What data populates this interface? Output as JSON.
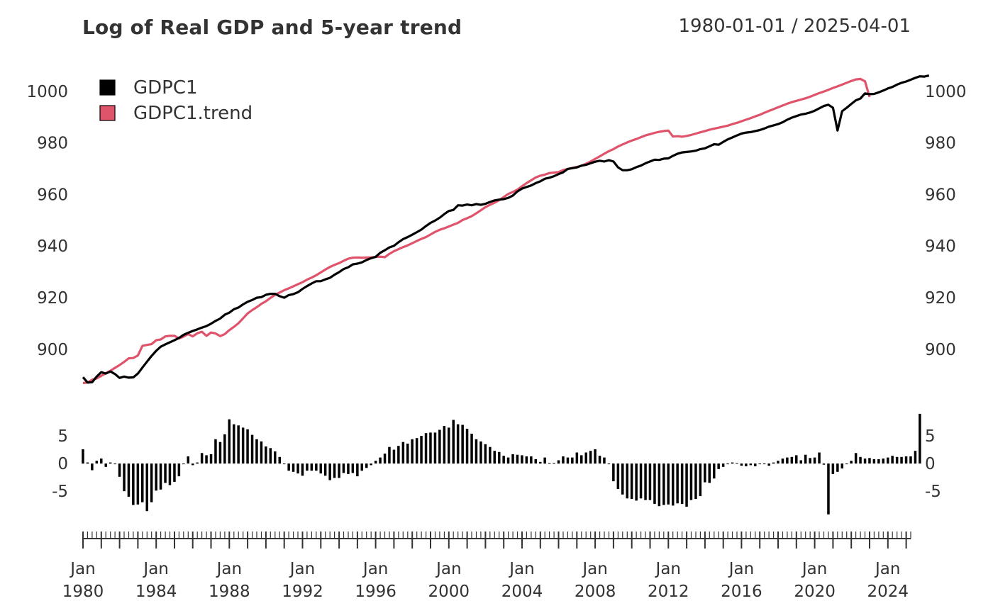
{
  "header": {
    "title": "Log of Real GDP and 5-year trend",
    "date_range": "1980-01-01 / 2025-04-01"
  },
  "colors": {
    "series_main": "#000000",
    "series_trend": "#DF536B",
    "bars": "#000000",
    "text": "#333333"
  },
  "chart_data": [
    {
      "type": "line",
      "title": "Log of Real GDP and 5-year trend",
      "x_type": "quarterly",
      "x_start": "1980-01-01",
      "x_end": "2025-04-01",
      "ylim": [
        884,
        1009
      ],
      "y_ticks": [
        900,
        920,
        940,
        960,
        980,
        1000
      ],
      "axis_sides": [
        "left",
        "right"
      ],
      "grid": false,
      "legend": {
        "position": "top-left",
        "entries": [
          "GDPC1",
          "GDPC1.trend"
        ]
      },
      "series": [
        {
          "name": "GDPC1",
          "color": "#000000",
          "values": [
            888.9,
            886.8,
            886.9,
            889.1,
            890.8,
            890.3,
            891.1,
            890.1,
            888.6,
            889.1,
            888.7,
            888.8,
            890.3,
            892.6,
            894.9,
            897.1,
            899.1,
            900.7,
            901.6,
            902.4,
            903.2,
            904.1,
            905.3,
            906.1,
            906.8,
            907.4,
            908.1,
            908.7,
            909.6,
            910.7,
            911.6,
            913.1,
            913.9,
            915.2,
            915.9,
            917.1,
            918.1,
            918.8,
            919.7,
            919.9,
            920.8,
            921.2,
            921.2,
            920.3,
            919.7,
            920.7,
            921.1,
            921.8,
            923.1,
            924.2,
            925.2,
            926.1,
            926.1,
            926.8,
            927.4,
            928.6,
            929.6,
            930.8,
            931.5,
            932.6,
            932.9,
            933.4,
            934.3,
            935.0,
            935.5,
            937.1,
            938.1,
            939.2,
            939.8,
            941.2,
            942.4,
            943.2,
            944.1,
            945.1,
            946.1,
            947.5,
            948.7,
            949.6,
            950.7,
            952.1,
            953.3,
            953.7,
            955.5,
            955.4,
            955.8,
            955.5,
            956.0,
            955.7,
            956.1,
            956.8,
            957.4,
            957.7,
            957.9,
            958.4,
            959.3,
            960.9,
            962.0,
            962.6,
            963.2,
            964.1,
            964.8,
            965.8,
            966.2,
            966.8,
            967.6,
            968.3,
            969.6,
            969.9,
            970.2,
            970.9,
            971.2,
            971.8,
            972.4,
            972.8,
            972.5,
            973.0,
            972.5,
            970.2,
            969.1,
            969.1,
            969.5,
            970.3,
            970.9,
            971.8,
            972.5,
            973.2,
            973.1,
            973.6,
            973.7,
            974.7,
            975.5,
            976.0,
            976.2,
            976.4,
            976.7,
            977.3,
            977.6,
            978.4,
            979.2,
            979.0,
            980.1,
            981.1,
            981.8,
            982.6,
            983.3,
            983.7,
            983.9,
            984.3,
            984.7,
            985.3,
            986.0,
            986.5,
            987.0,
            987.7,
            988.7,
            989.5,
            990.1,
            990.7,
            991.0,
            991.5,
            992.2,
            993.1,
            994.0,
            994.5,
            993.3,
            984.5,
            992.0,
            993.3,
            994.8,
            996.2,
            996.9,
            998.9,
            998.6,
            998.7,
            999.3,
            1000.0,
            1000.8,
            1001.4,
            1002.3,
            1003.0,
            1003.5,
            1004.2,
            1004.9,
            1005.5,
            1005.4,
            1005.8
          ]
        },
        {
          "name": "GDPC1.trend",
          "color": "#DF536B",
          "values": [
            886.6,
            886.8,
            887.9,
            888.4,
            889.4,
            890.4,
            891.4,
            892.5,
            893.6,
            894.8,
            896.2,
            896.3,
            897.3,
            901.0,
            901.4,
            901.7,
            903.2,
            903.5,
            904.7,
            904.9,
            904.9,
            903.9,
            904.6,
            905.6,
            904.7,
            905.9,
            906.5,
            904.9,
            906.2,
            905.8,
            904.8,
            905.6,
            907.1,
            908.4,
            909.8,
            911.7,
            913.6,
            914.9,
            916.0,
            917.3,
            918.3,
            919.6,
            920.8,
            921.7,
            922.6,
            923.3,
            924.1,
            924.9,
            925.7,
            926.7,
            927.5,
            928.4,
            929.5,
            930.6,
            931.6,
            932.4,
            933.1,
            934.0,
            934.8,
            935.2,
            935.3,
            935.2,
            935.3,
            935.3,
            935.5,
            935.6,
            935.4,
            936.7,
            937.7,
            938.5,
            939.3,
            940.0,
            940.8,
            941.7,
            942.5,
            943.2,
            944.2,
            945.2,
            946.0,
            946.6,
            947.3,
            948.0,
            948.7,
            949.8,
            950.5,
            951.3,
            952.4,
            953.6,
            954.8,
            955.7,
            956.5,
            957.5,
            958.7,
            959.9,
            960.7,
            961.6,
            962.9,
            964.1,
            965.2,
            966.3,
            967.0,
            967.4,
            968.0,
            968.2,
            968.4,
            969.2,
            969.6,
            970.0,
            970.4,
            970.8,
            971.6,
            972.5,
            973.5,
            974.5,
            975.5,
            976.5,
            977.3,
            978.3,
            979.1,
            979.9,
            980.6,
            981.2,
            981.9,
            982.6,
            983.1,
            983.6,
            984.0,
            984.3,
            984.5,
            982.2,
            982.3,
            982.1,
            982.4,
            982.8,
            983.3,
            983.8,
            984.3,
            984.8,
            985.2,
            985.6,
            986.0,
            986.4,
            987.0,
            987.5,
            988.1,
            988.7,
            989.3,
            990.0,
            990.6,
            991.4,
            992.1,
            992.8,
            993.5,
            994.2,
            994.9,
            995.5,
            996.0,
            996.5,
            997.0,
            997.6,
            998.3,
            999.0,
            999.6,
            1000.3,
            1001.0,
            1001.6,
            1002.3,
            1003.0,
            1003.7,
            1004.3,
            1004.5,
            1003.6,
            997.5
          ]
        }
      ]
    },
    {
      "type": "bar",
      "title": "",
      "x_type": "quarterly",
      "x_start": "1980-01-01",
      "x_end": "2025-04-01",
      "ylim": [
        -11,
        9.5
      ],
      "y_ticks": [
        -5,
        0,
        5
      ],
      "axis_sides": [
        "left",
        "right"
      ],
      "series": [
        {
          "name": "",
          "color": "#000000",
          "values": [
            2.6,
            0.2,
            -1.2,
            0.5,
            0.9,
            -0.6,
            0.2,
            0.0,
            -2.4,
            -5.0,
            -6.0,
            -7.5,
            -7.4,
            -7.0,
            -8.6,
            -7.0,
            -4.9,
            -4.7,
            -3.5,
            -3.9,
            -3.3,
            -2.3,
            0.0,
            1.3,
            -0.3,
            0.2,
            1.9,
            1.5,
            1.7,
            4.4,
            3.9,
            5.3,
            8.0,
            7.1,
            6.9,
            6.5,
            6.2,
            5.2,
            4.4,
            4.0,
            3.1,
            2.8,
            2.2,
            1.2,
            -0.1,
            -1.3,
            -1.5,
            -1.8,
            -2.2,
            -1.3,
            -1.3,
            -1.3,
            -1.8,
            -2.2,
            -3.0,
            -2.6,
            -2.6,
            -1.7,
            -1.9,
            -1.7,
            -2.3,
            -1.3,
            -0.8,
            -0.3,
            0.5,
            1.1,
            1.8,
            3.0,
            2.5,
            3.2,
            3.9,
            3.6,
            4.4,
            4.6,
            5.0,
            5.5,
            5.6,
            5.6,
            6.1,
            6.8,
            6.5,
            7.9,
            7.1,
            7.0,
            6.3,
            5.4,
            4.4,
            4.0,
            3.5,
            3.0,
            2.3,
            2.1,
            1.4,
            1.1,
            1.7,
            1.6,
            1.5,
            1.3,
            1.3,
            0.8,
            0.3,
            1.1,
            0.1,
            0.1,
            0.6,
            1.3,
            1.1,
            1.1,
            2.0,
            1.5,
            2.0,
            2.3,
            2.6,
            1.4,
            1.1,
            -0.1,
            -3.2,
            -4.6,
            -5.6,
            -6.3,
            -6.4,
            -6.7,
            -6.3,
            -6.6,
            -6.6,
            -7.3,
            -7.7,
            -7.5,
            -7.4,
            -7.6,
            -7.2,
            -7.3,
            -7.8,
            -6.6,
            -6.4,
            -5.9,
            -3.4,
            -3.5,
            -2.7,
            -1.0,
            -0.6,
            -0.1,
            0.2,
            0.1,
            -0.4,
            -0.5,
            -0.3,
            -0.5,
            0.0,
            0.0,
            -0.4,
            0.2,
            0.5,
            0.9,
            1.1,
            1.2,
            1.5,
            0.6,
            1.6,
            1.0,
            1.1,
            2.0,
            -0.2,
            -9.2,
            -1.9,
            -1.5,
            -0.9,
            -0.1,
            0.5,
            1.9,
            1.2,
            0.9,
            1.0,
            0.8,
            0.8,
            0.9,
            1.1,
            1.4,
            1.2,
            1.2,
            1.3,
            1.3,
            2.3,
            9.0
          ]
        }
      ]
    }
  ],
  "legend": [
    {
      "label": "GDPC1",
      "color": "#000000"
    },
    {
      "label": "GDPC1.trend",
      "color": "#DF536B"
    }
  ],
  "x_axis": {
    "labels": [
      {
        "month": "Jan",
        "year": "1980",
        "date": "1980-01-01"
      },
      {
        "month": "Jan",
        "year": "1984",
        "date": "1984-01-01"
      },
      {
        "month": "Jan",
        "year": "1988",
        "date": "1988-01-01"
      },
      {
        "month": "Jan",
        "year": "1992",
        "date": "1992-01-01"
      },
      {
        "month": "Jan",
        "year": "1996",
        "date": "1996-01-01"
      },
      {
        "month": "Jan",
        "year": "2000",
        "date": "2000-01-01"
      },
      {
        "month": "Jan",
        "year": "2004",
        "date": "2004-01-01"
      },
      {
        "month": "Jan",
        "year": "2008",
        "date": "2008-01-01"
      },
      {
        "month": "Jan",
        "year": "2012",
        "date": "2012-01-01"
      },
      {
        "month": "Jan",
        "year": "2016",
        "date": "2016-01-01"
      },
      {
        "month": "Jan",
        "year": "2020",
        "date": "2020-01-01"
      },
      {
        "month": "Jan",
        "year": "2024",
        "date": "2024-01-01"
      }
    ]
  }
}
